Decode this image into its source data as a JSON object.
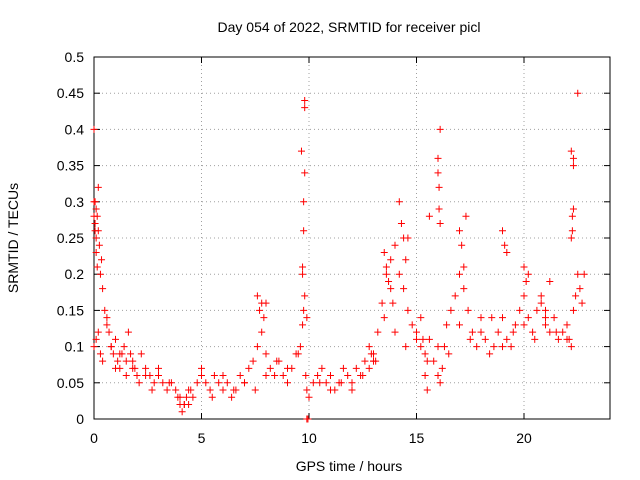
{
  "chart_data": {
    "type": "scatter",
    "title": "Day 054 of 2022, SRMTID for receiver picl",
    "xlabel": "GPS time / hours",
    "ylabel": "SRMTID / TECUs",
    "xlim": [
      0,
      24
    ],
    "ylim": [
      0,
      0.5
    ],
    "xticks": [
      0,
      5,
      10,
      15,
      20
    ],
    "yticks": [
      0,
      0.05,
      0.1,
      0.15,
      0.2,
      0.25,
      0.3,
      0.35,
      0.4,
      0.45,
      0.5
    ],
    "xtick_labels": [
      "0",
      "5",
      "10",
      "15",
      "20"
    ],
    "ytick_labels": [
      "0",
      "0.05",
      "0.1",
      "0.15",
      "0.2",
      "0.25",
      "0.3",
      "0.35",
      "0.4",
      "0.45",
      "0.5"
    ],
    "grid": true,
    "marker": "+",
    "color": "#ff0000",
    "series": [
      {
        "name": "SRMTID",
        "x": [
          0.0,
          0.05,
          0.1,
          0.15,
          0.2,
          0.25,
          0.3,
          0.35,
          0.4,
          0.5,
          0.6,
          0.7,
          0.8,
          0.9,
          1.0,
          1.1,
          1.2,
          1.3,
          1.4,
          1.5,
          1.6,
          1.7,
          1.8,
          1.9,
          2.0,
          2.2,
          2.4,
          2.6,
          2.8,
          3.0,
          3.2,
          3.4,
          3.6,
          3.8,
          4.0,
          4.2,
          4.4,
          4.6,
          4.8,
          5.0,
          5.2,
          5.4,
          5.6,
          5.8,
          6.0,
          6.2,
          6.4,
          6.6,
          6.8,
          7.0,
          7.2,
          7.4,
          7.6,
          7.8,
          8.0,
          8.2,
          8.4,
          8.6,
          8.8,
          9.0,
          9.2,
          9.4,
          9.6,
          9.7,
          9.75,
          9.8,
          9.85,
          9.9,
          10.0,
          10.2,
          10.4,
          10.6,
          10.8,
          11.0,
          11.2,
          11.4,
          11.6,
          11.8,
          12.0,
          12.2,
          12.4,
          12.6,
          12.8,
          13.0,
          13.2,
          13.4,
          13.6,
          13.8,
          14.0,
          14.2,
          14.4,
          14.6,
          14.8,
          15.0,
          15.2,
          15.4,
          15.6,
          15.8,
          16.0,
          16.1,
          16.2,
          16.3,
          16.4,
          16.6,
          16.8,
          17.0,
          17.2,
          17.4,
          17.6,
          17.8,
          18.0,
          18.2,
          18.4,
          18.6,
          18.8,
          19.0,
          19.2,
          19.4,
          19.6,
          19.8,
          20.0,
          20.2,
          20.4,
          20.6,
          20.8,
          21.0,
          21.2,
          21.4,
          21.6,
          21.8,
          22.0,
          22.1,
          22.2,
          22.3,
          22.4,
          22.5,
          22.6,
          22.7,
          22.8,
          0.0,
          0.1,
          0.2,
          0.3,
          0.4,
          0.6,
          0.8,
          1.0,
          1.2,
          1.5,
          1.8,
          2.1,
          2.4,
          2.7,
          3.0,
          3.5,
          4.0,
          4.5,
          5.0,
          5.5,
          6.0,
          6.5,
          7.0,
          7.5,
          8.0,
          8.5,
          9.0,
          9.5,
          10.5,
          11.0,
          11.5,
          12.0,
          12.5,
          13.0,
          13.5,
          14.0,
          14.5,
          15.0,
          15.5,
          16.0,
          16.5,
          17.0,
          17.5,
          18.0,
          18.5,
          19.0,
          19.5,
          20.0,
          20.5,
          21.0,
          21.5,
          22.0,
          22.5,
          9.8,
          9.8,
          9.8,
          9.75,
          9.75,
          9.7,
          9.7,
          9.65,
          16.0,
          16.0,
          16.05,
          16.05,
          16.1,
          16.1,
          22.3,
          22.3,
          22.3,
          22.25,
          22.25,
          22.2,
          22.2,
          0.0,
          0.0,
          0.05,
          0.05,
          0.1,
          0.1,
          0.15,
          0.2,
          14.2,
          14.3,
          14.4,
          14.5,
          14.6,
          13.5,
          13.6,
          13.7,
          13.8,
          13.9,
          15.2,
          15.3,
          15.4,
          15.5,
          15.6,
          17.0,
          17.1,
          17.2,
          17.3,
          19.0,
          19.1,
          19.2,
          20.0,
          20.1,
          20.2,
          20.8,
          21.0,
          21.2,
          7.6,
          7.7,
          7.8,
          7.9,
          8.0,
          9.9,
          9.9,
          9.95,
          12.8,
          12.9,
          13.0,
          13.1,
          3.9,
          4.0,
          4.1,
          4.2,
          4.3,
          4.4
        ],
        "y": [
          0.4,
          0.3,
          0.29,
          0.28,
          0.26,
          0.24,
          0.2,
          0.22,
          0.18,
          0.15,
          0.13,
          0.12,
          0.1,
          0.09,
          0.11,
          0.08,
          0.07,
          0.09,
          0.1,
          0.08,
          0.12,
          0.09,
          0.08,
          0.07,
          0.06,
          0.09,
          0.07,
          0.06,
          0.05,
          0.07,
          0.05,
          0.04,
          0.05,
          0.04,
          0.03,
          0.02,
          0.04,
          0.03,
          0.05,
          0.06,
          0.05,
          0.04,
          0.06,
          0.05,
          0.04,
          0.05,
          0.03,
          0.04,
          0.06,
          0.05,
          0.07,
          0.08,
          0.1,
          0.12,
          0.09,
          0.07,
          0.06,
          0.08,
          0.06,
          0.05,
          0.07,
          0.09,
          0.1,
          0.13,
          0.15,
          0.17,
          0.06,
          0.04,
          0.03,
          0.05,
          0.06,
          0.07,
          0.05,
          0.06,
          0.04,
          0.05,
          0.07,
          0.06,
          0.05,
          0.07,
          0.06,
          0.08,
          0.07,
          0.09,
          0.12,
          0.16,
          0.2,
          0.22,
          0.24,
          0.2,
          0.18,
          0.15,
          0.13,
          0.12,
          0.1,
          0.09,
          0.11,
          0.08,
          0.06,
          0.05,
          0.07,
          0.1,
          0.13,
          0.15,
          0.17,
          0.2,
          0.18,
          0.15,
          0.12,
          0.1,
          0.14,
          0.11,
          0.09,
          0.1,
          0.12,
          0.14,
          0.11,
          0.1,
          0.13,
          0.15,
          0.17,
          0.14,
          0.12,
          0.15,
          0.16,
          0.13,
          0.12,
          0.14,
          0.11,
          0.12,
          0.13,
          0.11,
          0.1,
          0.15,
          0.17,
          0.2,
          0.18,
          0.16,
          0.2,
          0.1,
          0.11,
          0.12,
          0.09,
          0.08,
          0.14,
          0.1,
          0.07,
          0.09,
          0.06,
          0.07,
          0.05,
          0.06,
          0.04,
          0.06,
          0.05,
          0.02,
          0.04,
          0.07,
          0.03,
          0.06,
          0.04,
          0.05,
          0.04,
          0.06,
          0.08,
          0.07,
          0.09,
          0.05,
          0.04,
          0.05,
          0.04,
          0.06,
          0.08,
          0.14,
          0.12,
          0.1,
          0.11,
          0.08,
          0.1,
          0.09,
          0.13,
          0.11,
          0.12,
          0.14,
          0.1,
          0.12,
          0.13,
          0.11,
          0.14,
          0.12,
          0.11,
          0.45,
          0.44,
          0.43,
          0.34,
          0.3,
          0.26,
          0.21,
          0.2,
          0.37,
          0.36,
          0.34,
          0.32,
          0.29,
          0.27,
          0.4,
          0.36,
          0.35,
          0.29,
          0.28,
          0.26,
          0.25,
          0.37,
          0.3,
          0.28,
          0.27,
          0.26,
          0.23,
          0.25,
          0.21,
          0.32,
          0.3,
          0.27,
          0.25,
          0.22,
          0.25,
          0.23,
          0.21,
          0.19,
          0.18,
          0.16,
          0.14,
          0.11,
          0.06,
          0.04,
          0.28,
          0.26,
          0.24,
          0.21,
          0.28,
          0.26,
          0.24,
          0.23,
          0.21,
          0.19,
          0.2,
          0.17,
          0.15,
          0.19,
          0.17,
          0.15,
          0.16,
          0.14,
          0.16,
          0.14,
          0.0,
          0.0,
          0.1,
          0.09,
          0.08,
          0.08,
          0.03,
          0.02,
          0.01,
          0.02,
          0.03,
          0.02
        ]
      }
    ]
  }
}
